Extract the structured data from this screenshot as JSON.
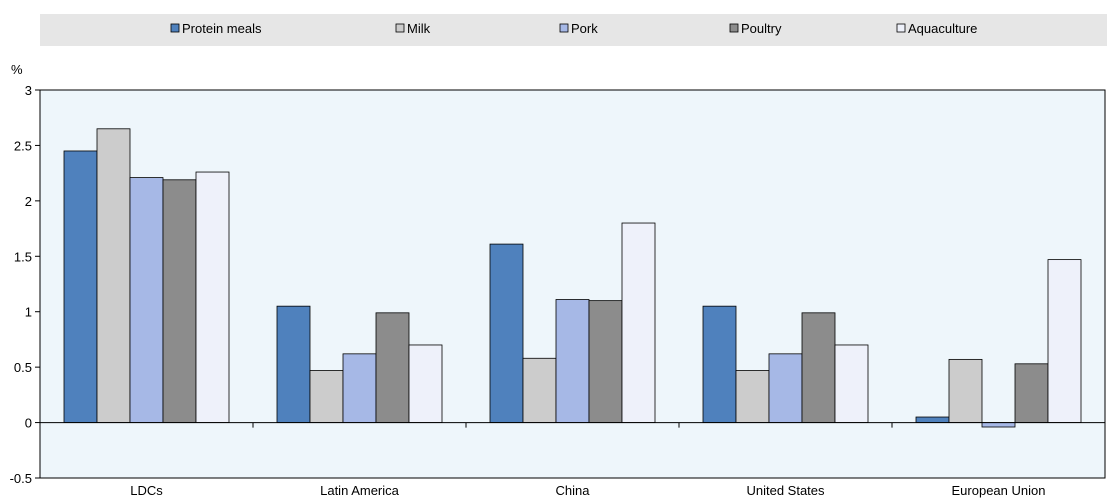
{
  "chart_data": {
    "type": "bar",
    "unit_label": "%",
    "categories": [
      "LDCs",
      "Latin America",
      "China",
      "United States",
      "European Union"
    ],
    "series": [
      {
        "name": "Protein meals",
        "color": "#4f81bd",
        "values": [
          2.45,
          1.05,
          1.61,
          1.05,
          0.05
        ]
      },
      {
        "name": "Milk",
        "color": "#cccccc",
        "values": [
          2.65,
          0.47,
          0.58,
          0.47,
          0.57
        ]
      },
      {
        "name": "Pork",
        "color": "#a6b8e6",
        "values": [
          2.21,
          0.62,
          1.11,
          0.62,
          -0.04
        ]
      },
      {
        "name": "Poultry",
        "color": "#8c8c8c",
        "values": [
          2.19,
          0.99,
          1.1,
          0.99,
          0.53
        ]
      },
      {
        "name": "Aquaculture",
        "color": "#eef1fa",
        "values": [
          2.26,
          0.7,
          1.8,
          0.7,
          1.47
        ]
      }
    ],
    "yticks": [
      "-0.5",
      "0",
      "0.5",
      "1",
      "1.5",
      "2",
      "2.5",
      "3"
    ],
    "ylim": [
      -0.5,
      3
    ],
    "legend_position": "top",
    "plot_background": "#eef6fb",
    "legend_background": "#e6e6e6",
    "grid": false
  }
}
